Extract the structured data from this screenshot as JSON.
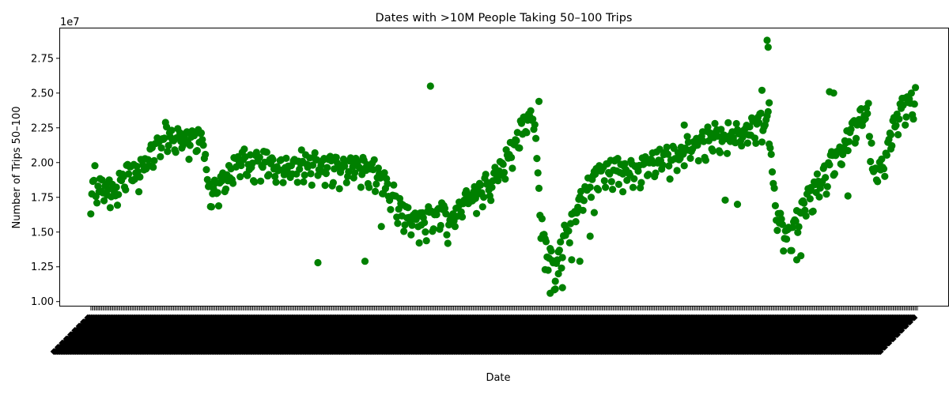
{
  "chart_data": {
    "type": "scatter",
    "title": "Dates with >10M People Taking 50–100 Trips",
    "xlabel": "Date",
    "ylabel": "Number of Trips 50–100",
    "y_offset_label": "1e7",
    "ylim": [
      0.97,
      2.965
    ],
    "yticks": [
      1.0,
      1.25,
      1.5,
      1.75,
      2.0,
      2.25,
      2.5,
      2.75
    ],
    "ytick_labels": [
      "1.00",
      "1.25",
      "1.50",
      "1.75",
      "2.00",
      "2.25",
      "2.50",
      "2.75"
    ],
    "x_tick_count": 680,
    "x_tick_labels_legible": false,
    "grid": false,
    "marker_color": "#008000",
    "series": [
      {
        "keypoints": [
          [
            0,
            1.57
          ],
          [
            2,
            1.78
          ],
          [
            4,
            1.88
          ],
          [
            8,
            1.75
          ],
          [
            12,
            1.82
          ],
          [
            16,
            1.76
          ],
          [
            20,
            1.78
          ],
          [
            24,
            1.72
          ],
          [
            28,
            1.85
          ],
          [
            32,
            1.88
          ],
          [
            38,
            1.92
          ],
          [
            44,
            1.86
          ],
          [
            50,
            1.94
          ],
          [
            56,
            1.98
          ],
          [
            62,
            2.04
          ],
          [
            68,
            2.12
          ],
          [
            74,
            2.18
          ],
          [
            80,
            2.17
          ],
          [
            86,
            2.15
          ],
          [
            92,
            2.13
          ],
          [
            98,
            2.14
          ],
          [
            104,
            2.16
          ],
          [
            110,
            2.12
          ],
          [
            114,
            1.78
          ],
          [
            120,
            1.76
          ],
          [
            130,
            1.82
          ],
          [
            140,
            1.95
          ],
          [
            150,
            1.98
          ],
          [
            160,
            1.95
          ],
          [
            170,
            1.98
          ],
          [
            180,
            1.96
          ],
          [
            190,
            1.93
          ],
          [
            200,
            1.94
          ],
          [
            210,
            1.95
          ],
          [
            220,
            1.94
          ],
          [
            230,
            1.95
          ],
          [
            240,
            1.93
          ],
          [
            250,
            1.95
          ],
          [
            260,
            1.94
          ],
          [
            270,
            1.92
          ],
          [
            280,
            1.88
          ],
          [
            290,
            1.78
          ],
          [
            300,
            1.65
          ],
          [
            306,
            1.58
          ],
          [
            312,
            1.55
          ],
          [
            318,
            1.58
          ],
          [
            324,
            1.52
          ],
          [
            330,
            1.57
          ],
          [
            336,
            1.55
          ],
          [
            342,
            1.6
          ],
          [
            348,
            1.54
          ],
          [
            354,
            1.58
          ],
          [
            360,
            1.65
          ],
          [
            366,
            1.7
          ],
          [
            372,
            1.73
          ],
          [
            378,
            1.76
          ],
          [
            384,
            1.8
          ],
          [
            390,
            1.83
          ],
          [
            396,
            1.88
          ],
          [
            402,
            1.94
          ],
          [
            408,
            2.02
          ],
          [
            414,
            2.1
          ],
          [
            420,
            2.18
          ],
          [
            426,
            2.25
          ],
          [
            432,
            2.3
          ],
          [
            436,
            2.05
          ],
          [
            440,
            1.55
          ],
          [
            444,
            1.42
          ],
          [
            448,
            1.28
          ],
          [
            452,
            1.18
          ],
          [
            456,
            1.25
          ],
          [
            460,
            1.35
          ],
          [
            464,
            1.45
          ],
          [
            468,
            1.52
          ],
          [
            472,
            1.58
          ],
          [
            476,
            1.65
          ],
          [
            480,
            1.72
          ],
          [
            486,
            1.8
          ],
          [
            492,
            1.86
          ],
          [
            500,
            1.9
          ],
          [
            510,
            1.92
          ],
          [
            520,
            1.93
          ],
          [
            530,
            1.92
          ],
          [
            540,
            1.94
          ],
          [
            550,
            1.96
          ],
          [
            560,
            1.98
          ],
          [
            570,
            2.02
          ],
          [
            580,
            2.06
          ],
          [
            590,
            2.1
          ],
          [
            600,
            2.13
          ],
          [
            610,
            2.16
          ],
          [
            620,
            2.18
          ],
          [
            630,
            2.15
          ],
          [
            640,
            2.2
          ],
          [
            650,
            2.22
          ],
          [
            658,
            2.24
          ],
          [
            662,
            2.3
          ],
          [
            668,
            1.72
          ],
          [
            672,
            1.6
          ],
          [
            676,
            1.5
          ],
          [
            680,
            1.42
          ],
          [
            684,
            1.45
          ],
          [
            688,
            1.5
          ],
          [
            692,
            1.58
          ],
          [
            696,
            1.64
          ],
          [
            700,
            1.7
          ],
          [
            706,
            1.76
          ],
          [
            712,
            1.82
          ],
          [
            718,
            1.88
          ],
          [
            724,
            1.95
          ],
          [
            730,
            2.02
          ],
          [
            736,
            2.1
          ],
          [
            742,
            2.18
          ],
          [
            748,
            2.25
          ],
          [
            754,
            2.3
          ],
          [
            760,
            2.34
          ],
          [
            764,
            1.9
          ],
          [
            770,
            1.92
          ],
          [
            776,
            1.95
          ],
          [
            782,
            2.2
          ],
          [
            790,
            2.32
          ],
          [
            798,
            2.38
          ],
          [
            806,
            2.42
          ]
        ],
        "outliers": [
          [
            206,
            2.09
          ],
          [
            222,
            1.28
          ],
          [
            268,
            1.29
          ],
          [
            284,
            1.54
          ],
          [
            332,
            2.55
          ],
          [
            438,
            2.44
          ],
          [
            444,
            1.23
          ],
          [
            449,
            1.06
          ],
          [
            454,
            1.09
          ],
          [
            457,
            1.2
          ],
          [
            461,
            1.1
          ],
          [
            470,
            1.3
          ],
          [
            478,
            1.29
          ],
          [
            488,
            1.47
          ],
          [
            492,
            1.64
          ],
          [
            520,
            1.79
          ],
          [
            580,
            2.27
          ],
          [
            620,
            1.73
          ],
          [
            632,
            1.7
          ],
          [
            656,
            2.52
          ],
          [
            661,
            2.88
          ],
          [
            662,
            2.83
          ],
          [
            663,
            2.43
          ],
          [
            690,
            1.3
          ],
          [
            694,
            1.33
          ],
          [
            704,
            1.8
          ],
          [
            722,
            2.51
          ],
          [
            726,
            2.5
          ],
          [
            740,
            1.76
          ],
          [
            782,
            2.2
          ]
        ]
      }
    ]
  }
}
